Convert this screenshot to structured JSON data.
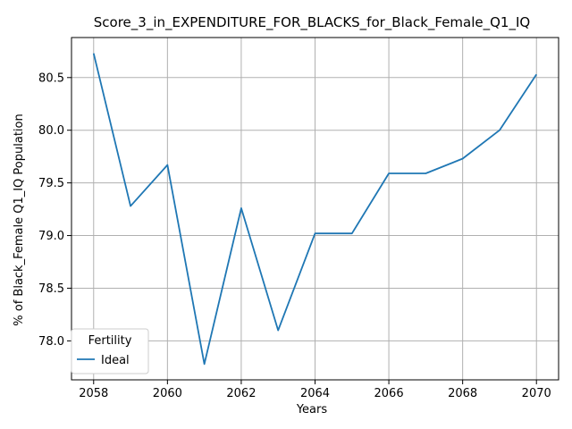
{
  "chart_data": {
    "type": "line",
    "title": "Score_3_in_EXPENDITURE_FOR_BLACKS_for_Black_Female_Q1_IQ",
    "xlabel": "Years",
    "ylabel": "% of Black_Female Q1_IQ Population",
    "x": [
      2058,
      2059,
      2060,
      2061,
      2062,
      2063,
      2064,
      2065,
      2066,
      2067,
      2068,
      2069,
      2070
    ],
    "series": [
      {
        "name": "Ideal",
        "color": "#1f77b4",
        "values": [
          80.73,
          79.28,
          79.67,
          77.78,
          79.26,
          78.1,
          79.02,
          79.02,
          79.59,
          79.59,
          79.73,
          80.0,
          80.53
        ]
      }
    ],
    "xlim": [
      2057.4,
      2070.6
    ],
    "ylim": [
      77.63,
      80.88
    ],
    "x_ticks": [
      2058,
      2060,
      2062,
      2064,
      2066,
      2068,
      2070
    ],
    "x_tick_labels": [
      "2058",
      "2060",
      "2062",
      "2064",
      "2066",
      "2068",
      "2070"
    ],
    "y_ticks": [
      78.0,
      78.5,
      79.0,
      79.5,
      80.0,
      80.5
    ],
    "y_tick_labels": [
      "78.0",
      "78.5",
      "79.0",
      "79.5",
      "80.0",
      "80.5"
    ],
    "grid": true,
    "legend": {
      "title": "Fertility",
      "placement": "lower-left"
    }
  }
}
